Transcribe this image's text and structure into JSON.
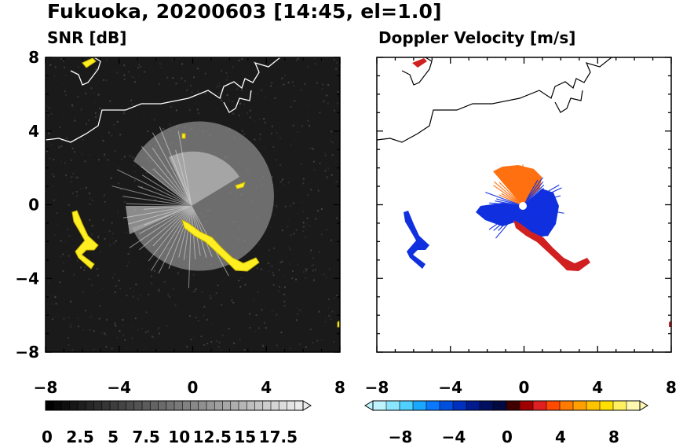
{
  "title": "Fukuoka, 20200603 [14:45, el=1.0]",
  "panels": [
    {
      "id": "snr",
      "subtitle": "SNR [dB]",
      "x_ticks": [
        "−8",
        "−4",
        "0",
        "4",
        "8"
      ],
      "y_ticks": [
        "8",
        "4",
        "0",
        "−4",
        "−8"
      ],
      "colorbar_labels": [
        "0",
        "2.5",
        "5",
        "7.5",
        "10",
        "12.5",
        "15",
        "17.5"
      ],
      "background_color": "#1a1a1a",
      "highlight_color": "#ffee22"
    },
    {
      "id": "doppler",
      "subtitle": "Doppler Velocity [m/s]",
      "x_ticks": [
        "−8",
        "−4",
        "0",
        "4",
        "8"
      ],
      "y_ticks": [],
      "colorbar_labels": [
        "−8",
        "−4",
        "0",
        "4",
        "8"
      ],
      "background_color": "#ffffff",
      "approaching_color": "#1030e0",
      "receding_color": "#ff7010"
    }
  ],
  "axes": {
    "x_range": [
      -8,
      8
    ],
    "y_range": [
      -8,
      8
    ]
  }
}
